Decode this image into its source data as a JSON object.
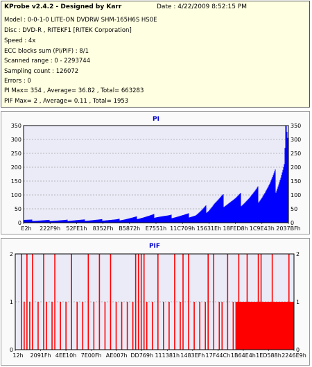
{
  "header": {
    "title": "KProbe v2.4.2 - Designed by Karr",
    "date": "Date : 4/22/2009 8:52:15 PM",
    "lines": [
      "Model : 0-0-1-0 LITE-ON DVDRW SHM-165H6S HS0E",
      "Disc : DVD-R , RITEKF1 [RITEK Corporation]",
      "Speed : 4x",
      "ECC blocks sum (PI/PIF) : 8/1",
      "Scanned range : 0 - 2293744",
      "Sampling count : 126072",
      "Errors : 0",
      "PI Max= 354 , Average= 36.82 , Total= 663283",
      "PIF Max= 2 , Average= 0.11 , Total= 1953"
    ]
  },
  "colors": {
    "pi": "#0000ff",
    "pif": "#ff0000",
    "title": "#0000cc",
    "grid": "#808080"
  },
  "chart_data": [
    {
      "type": "area",
      "title": "PI",
      "ylim": [
        0,
        350
      ],
      "yticks": [
        "0",
        "50",
        "100",
        "150",
        "200",
        "250",
        "300",
        "350"
      ],
      "xticks": [
        "E2h",
        "222F9h",
        "52FE1h",
        "8352Fh",
        "B5872h",
        "E7551h",
        "11C709h",
        "15631Eh",
        "18FED8h",
        "1C9E43h",
        "2037BFh"
      ],
      "series": [
        {
          "x": [
            0,
            0.05,
            0.1,
            0.15,
            0.2,
            0.25,
            0.3,
            0.35,
            0.4,
            0.45,
            0.5,
            0.55,
            0.6,
            0.65,
            0.7,
            0.72,
            0.75,
            0.8,
            0.85,
            0.88,
            0.9,
            0.93,
            0.95,
            0.97,
            0.985,
            0.99,
            1.0
          ],
          "values": [
            10,
            8,
            8,
            8,
            9,
            9,
            10,
            10,
            15,
            20,
            25,
            22,
            25,
            28,
            55,
            70,
            80,
            80,
            90,
            100,
            110,
            130,
            150,
            185,
            215,
            350,
            250
          ]
        }
      ]
    },
    {
      "type": "bar",
      "title": "PIF",
      "ylim": [
        0,
        2
      ],
      "yticks": [
        "0",
        "1",
        "2"
      ],
      "xticks": [
        "12h",
        "2091Fh",
        "4EE10h",
        "7E00Fh",
        "AE007h",
        "DD769h",
        "111381h",
        "1483EFh",
        "17F44Ch",
        "1B64E4h",
        "1ED588h",
        "2246E9h"
      ],
      "spikes_value_2": [
        0.02,
        0.04,
        0.06,
        0.1,
        0.14,
        0.2,
        0.26,
        0.3,
        0.34,
        0.43,
        0.44,
        0.45,
        0.46,
        0.51,
        0.57,
        0.6,
        0.62,
        0.69,
        0.71,
        0.76,
        0.8,
        0.83,
        0.87,
        0.88,
        0.92,
        0.98
      ],
      "spikes_value_1": [
        0.03,
        0.05,
        0.08,
        0.11,
        0.13,
        0.16,
        0.18,
        0.22,
        0.24,
        0.28,
        0.32,
        0.36,
        0.38,
        0.4,
        0.42,
        0.47,
        0.49,
        0.53,
        0.55,
        0.59,
        0.64,
        0.66,
        0.68,
        0.73,
        0.74,
        0.78,
        0.82,
        0.85
      ],
      "dense_range_value_1": [
        0.79,
        1.0
      ]
    }
  ]
}
